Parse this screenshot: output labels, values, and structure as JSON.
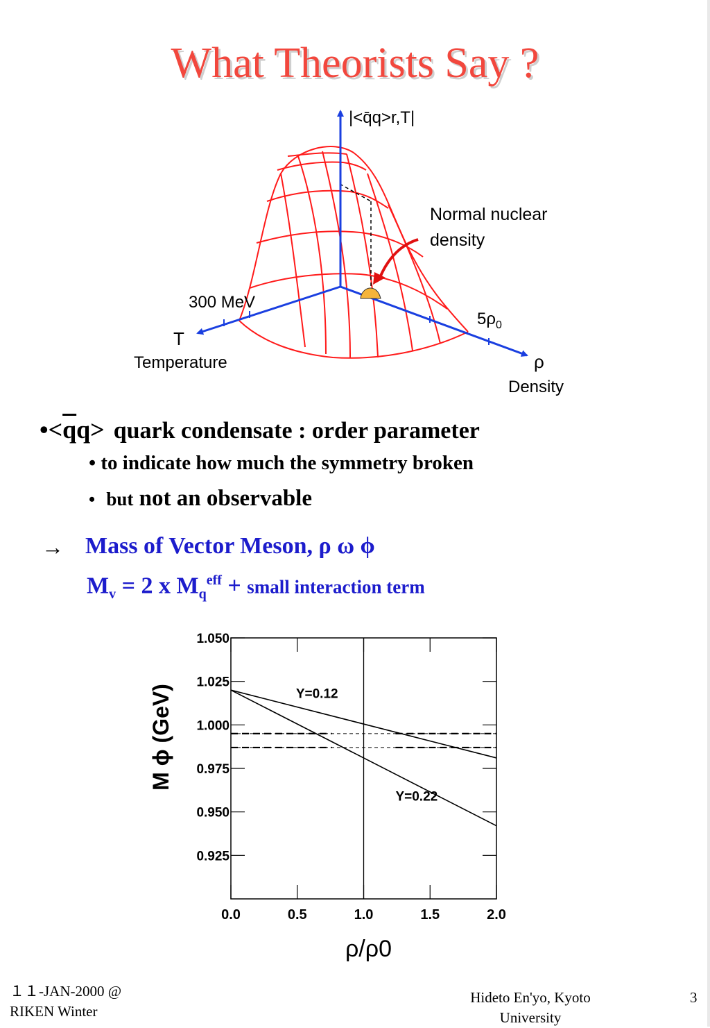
{
  "slide": {
    "title": "What Theorists Say ?",
    "page_number": "3"
  },
  "top_figure": {
    "axis_z": "|<q̄q>r,T|",
    "annotation_line1": "Normal nuclear",
    "annotation_line2": "density",
    "temp_tick": "300 MeV",
    "temp_symbol": "T",
    "temp_name": "Temperature",
    "density_tick": "5ρ",
    "density_tick_sub": "0",
    "density_symbol": "ρ",
    "density_name": "Density"
  },
  "bullets": {
    "b1_prefix": "•<",
    "b1_qbar": "q",
    "b1_q": "q>",
    "b1_text": "quark condensate : order parameter",
    "b2": "•  to indicate how much the symmetry broken",
    "b3_dot": "•",
    "b3_small": "but",
    "b3_text": "not an observable",
    "arrow": "→",
    "meson_text": "Mass of Vector Meson, ρ ω ϕ",
    "formula_m": "M",
    "formula_v": "v",
    "formula_mid": " = 2 x M",
    "formula_q": "q",
    "formula_eff": "eff",
    "formula_plus": " + ",
    "formula_small": "small interaction term"
  },
  "chart_data": {
    "type": "line",
    "xlabel": "ρ/ρ0",
    "ylabel": "M ϕ (GeV)",
    "xlim": [
      0,
      2
    ],
    "ylim": [
      0.9,
      1.05
    ],
    "x_ticks": [
      "0.0",
      "0.5",
      "1.0",
      "1.5",
      "2.0"
    ],
    "y_ticks": [
      "1.050",
      "1.025",
      "1.000",
      "0.975",
      "0.950",
      "0.925"
    ],
    "series": [
      {
        "name": "Y=0.12",
        "x": [
          0,
          2
        ],
        "y": [
          1.02,
          0.981
        ]
      },
      {
        "name": "Y=0.22",
        "x": [
          0,
          2
        ],
        "y": [
          1.02,
          0.942
        ]
      }
    ],
    "dashed_levels": [
      0.995,
      0.987
    ],
    "vertical_marker": 1.0,
    "grid": false
  },
  "footer": {
    "left_line1": "１１-JAN-2000 @",
    "left_line2": "RIKEN Winter",
    "center_line1": "Hideto En'yo, Kyoto",
    "center_line2": "University"
  }
}
